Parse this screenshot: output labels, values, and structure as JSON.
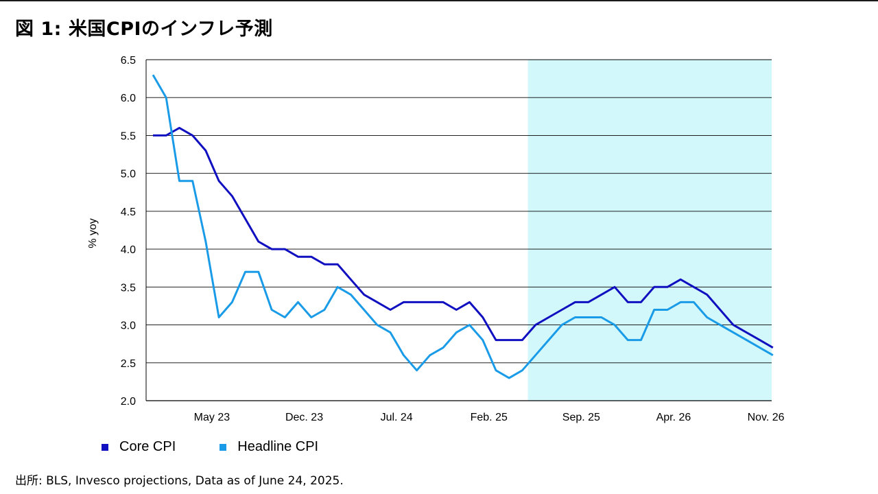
{
  "title": "図 1: 米国CPIのインフレ予測",
  "source": "出所: BLS, Invesco projections, Data as of June 24, 2025.",
  "chart_data": {
    "type": "line",
    "xlabel": "",
    "ylabel": "% yoy",
    "ylim": [
      2.0,
      6.5
    ],
    "yticks": [
      "2.0",
      "2.5",
      "3.0",
      "3.5",
      "4.0",
      "4.5",
      "5.0",
      "5.5",
      "6.0",
      "6.5"
    ],
    "x": [
      "Jan. 23",
      "Feb. 23",
      "Mar. 23",
      "Apr. 23",
      "May 23",
      "Jun. 23",
      "Jul. 23",
      "Aug. 23",
      "Sep. 23",
      "Oct. 23",
      "Nov. 23",
      "Dec. 23",
      "Jan. 24",
      "Feb. 24",
      "Mar. 24",
      "Apr. 24",
      "May 24",
      "Jun. 24",
      "Jul. 24",
      "Aug. 24",
      "Sep. 24",
      "Oct. 24",
      "Nov. 24",
      "Dec. 24",
      "Jan. 25",
      "Feb. 25",
      "Mar. 25",
      "Apr. 25",
      "May 25",
      "Jun. 25",
      "Jul. 25",
      "Aug. 25",
      "Sep. 25",
      "Oct. 25",
      "Nov. 25",
      "Dec. 25",
      "Jan. 26",
      "Feb. 26",
      "Mar. 26",
      "Apr. 26",
      "May 26",
      "Jun. 26",
      "Jul. 26",
      "Aug. 26",
      "Sep. 26",
      "Oct. 26",
      "Nov. 26",
      "Dec. 26"
    ],
    "xtick_labels": [
      "May 23",
      "Dec. 23",
      "Jul. 24",
      "Feb. 25",
      "Sep. 25",
      "Apr. 26",
      "Nov. 26"
    ],
    "xtick_indices": [
      4,
      11,
      18,
      25,
      32,
      39,
      46
    ],
    "shaded_region": {
      "from": "Jun. 25",
      "to": "Dec. 26",
      "color": "#d2f8fc"
    },
    "grid": "horizontal",
    "legend_position": "bottom-left",
    "series": [
      {
        "name": "Core CPI",
        "color": "#1010c0",
        "values": [
          5.5,
          5.5,
          5.6,
          5.5,
          5.3,
          4.9,
          4.7,
          4.4,
          4.1,
          4.0,
          4.0,
          3.9,
          3.9,
          3.8,
          3.8,
          3.6,
          3.4,
          3.3,
          3.2,
          3.3,
          3.3,
          3.3,
          3.3,
          3.2,
          3.3,
          3.1,
          2.8,
          2.8,
          2.8,
          3.0,
          3.1,
          3.2,
          3.3,
          3.3,
          3.4,
          3.5,
          3.3,
          3.3,
          3.5,
          3.5,
          3.6,
          3.5,
          3.4,
          3.2,
          3.0,
          2.9,
          2.8,
          2.7
        ]
      },
      {
        "name": "Headline CPI",
        "color": "#1a9be8",
        "values": [
          6.3,
          6.0,
          4.9,
          4.9,
          4.1,
          3.1,
          3.3,
          3.7,
          3.7,
          3.2,
          3.1,
          3.3,
          3.1,
          3.2,
          3.5,
          3.4,
          3.2,
          3.0,
          2.9,
          2.6,
          2.4,
          2.6,
          2.7,
          2.9,
          3.0,
          2.8,
          2.4,
          2.3,
          2.4,
          2.6,
          2.8,
          3.0,
          3.1,
          3.1,
          3.1,
          3.0,
          2.8,
          2.8,
          3.2,
          3.2,
          3.3,
          3.3,
          3.1,
          3.0,
          2.9,
          2.8,
          2.7,
          2.6
        ]
      }
    ]
  }
}
